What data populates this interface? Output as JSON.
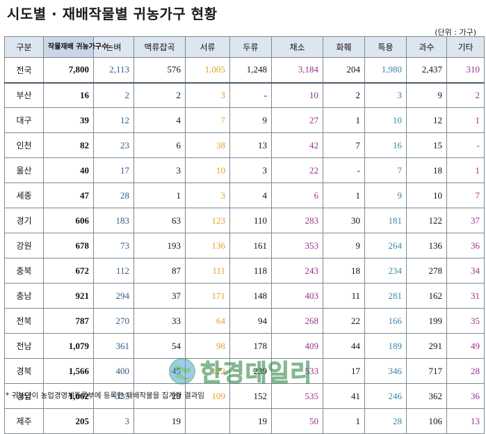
{
  "title": "시도별 · 재배작물별 귀농가구 현황",
  "unit": "(단위 : 가구)",
  "table": {
    "headers": [
      "구분",
      "작물재배 귀농가구수",
      "논벼",
      "맥류잡곡",
      "서류",
      "두류",
      "채소",
      "화훼",
      "특용",
      "과수",
      "기타"
    ],
    "rows": [
      {
        "region": "전국",
        "values": [
          "7,800",
          "2,113",
          "576",
          "1,005",
          "1,248",
          "3,184",
          "204",
          "1,980",
          "2,437",
          "310"
        ]
      },
      {
        "region": "부산",
        "values": [
          "16",
          "2",
          "2",
          "3",
          "-",
          "10",
          "2",
          "3",
          "9",
          "2"
        ]
      },
      {
        "region": "대구",
        "values": [
          "39",
          "12",
          "4",
          "7",
          "9",
          "27",
          "1",
          "10",
          "12",
          "1"
        ]
      },
      {
        "region": "인천",
        "values": [
          "82",
          "23",
          "6",
          "38",
          "13",
          "42",
          "7",
          "16",
          "15",
          "-"
        ]
      },
      {
        "region": "울산",
        "values": [
          "40",
          "17",
          "3",
          "10",
          "3",
          "22",
          "-",
          "7",
          "18",
          "1"
        ]
      },
      {
        "region": "세종",
        "values": [
          "47",
          "28",
          "1",
          "3",
          "4",
          "6",
          "1",
          "9",
          "10",
          "7"
        ]
      },
      {
        "region": "경기",
        "values": [
          "606",
          "183",
          "63",
          "123",
          "110",
          "283",
          "30",
          "181",
          "122",
          "37"
        ]
      },
      {
        "region": "강원",
        "values": [
          "678",
          "73",
          "193",
          "136",
          "161",
          "353",
          "9",
          "264",
          "136",
          "36"
        ]
      },
      {
        "region": "충북",
        "values": [
          "672",
          "112",
          "87",
          "111",
          "118",
          "243",
          "18",
          "234",
          "278",
          "34"
        ]
      },
      {
        "region": "충남",
        "values": [
          "921",
          "294",
          "37",
          "171",
          "148",
          "403",
          "11",
          "281",
          "162",
          "31"
        ]
      },
      {
        "region": "전북",
        "values": [
          "787",
          "270",
          "33",
          "64",
          "94",
          "268",
          "22",
          "166",
          "199",
          "35"
        ]
      },
      {
        "region": "전남",
        "values": [
          "1,079",
          "361",
          "54",
          "98",
          "178",
          "409",
          "44",
          "189",
          "291",
          "49"
        ]
      },
      {
        "region": "경북",
        "values": [
          "1,566",
          "400",
          "45",
          "122",
          "239",
          "533",
          "17",
          "346",
          "717",
          "28"
        ]
      },
      {
        "region": "경남",
        "values": [
          "1,062",
          "335",
          "29",
          "109",
          "152",
          "535",
          "41",
          "246",
          "362",
          "36"
        ]
      },
      {
        "region": "제주",
        "values": [
          "205",
          "3",
          "19",
          "",
          "19",
          "50",
          "1",
          "28",
          "106",
          "13"
        ]
      }
    ]
  },
  "column_colors": [
    "#111111",
    "#111111",
    "#2e5b8a",
    "#111111",
    "#e4a024",
    "#111111",
    "#9d2f8e",
    "#111111",
    "#3a86a6",
    "#111111",
    "#9d2f8e"
  ],
  "watermark": {
    "text": "한경데일리",
    "icon": "globe-logo-icon"
  },
  "footnote": "* 귀농인이 농업경영체등록부에 등록한 재배작물을 집계한 결과임"
}
